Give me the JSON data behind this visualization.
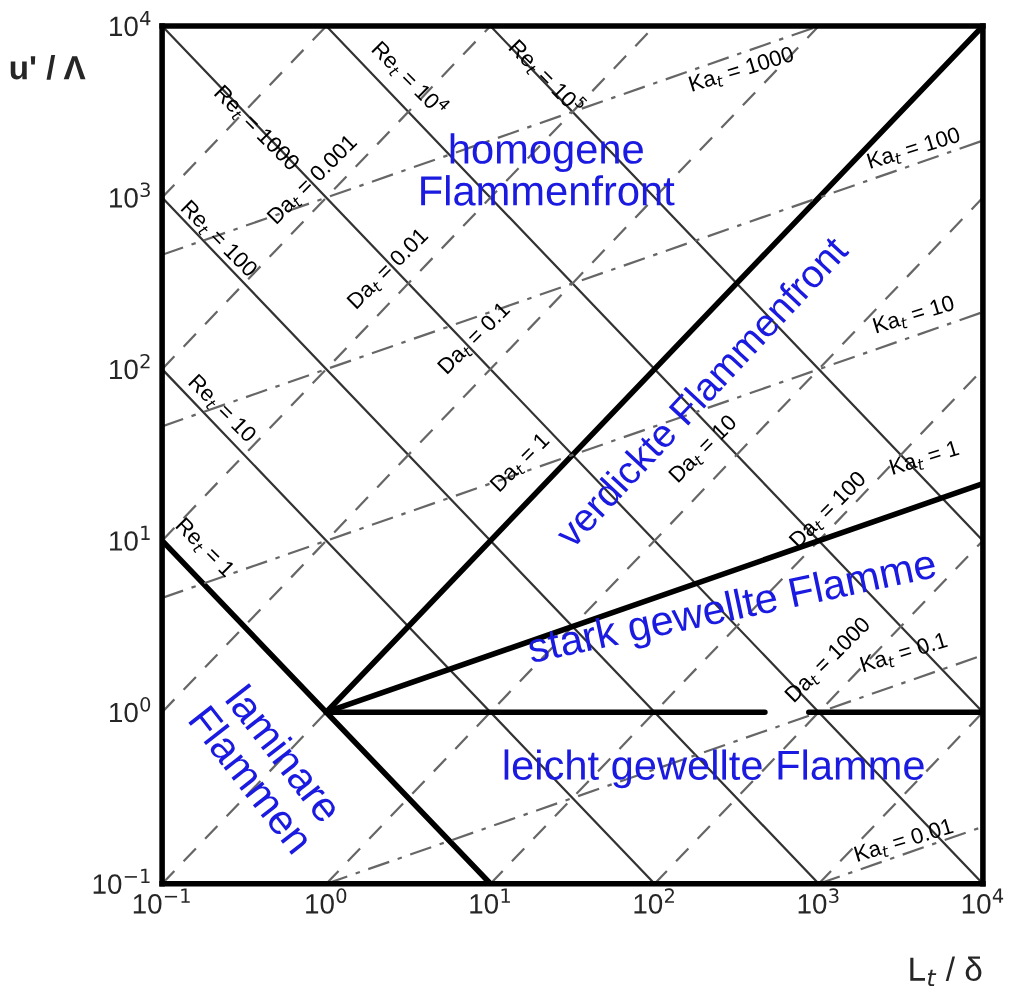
{
  "chart_data": {
    "type": "line",
    "xlabel": "L$_{t}$ / δ",
    "ylabel": "u' / Λ",
    "log": "xy",
    "grid": false,
    "legend": false,
    "xlim": [
      0.1,
      10000
    ],
    "ylim": [
      0.1,
      10000
    ],
    "xticks": [
      {
        "value": 0.1,
        "label": "10$^{−1}$"
      },
      {
        "value": 1,
        "label": "10$^{0}$"
      },
      {
        "value": 10,
        "label": "10$^{1}$"
      },
      {
        "value": 100,
        "label": "10$^{2}$"
      },
      {
        "value": 1000,
        "label": "10$^{3}$"
      },
      {
        "value": 10000,
        "label": "10$^{4}$"
      }
    ],
    "yticks": [
      {
        "value": 0.1,
        "label": "10$^{−1}$"
      },
      {
        "value": 1,
        "label": "10$^{0}$"
      },
      {
        "value": 10,
        "label": "10$^{1}$"
      },
      {
        "value": 100,
        "label": "10$^{2}$"
      },
      {
        "value": 1000,
        "label": "10$^{3}$"
      },
      {
        "value": 10000,
        "label": "10$^{4}$"
      }
    ],
    "series": [
      {
        "color": "#000000",
        "line_style": "solid",
        "x": [
          0.1,
          10
        ],
        "values": [
          10,
          0.1
        ]
      },
      {
        "color": "#333333",
        "line_style": "solid",
        "x": [
          0.1,
          100
        ],
        "values": [
          100,
          0.1
        ]
      },
      {
        "color": "#333333",
        "line_style": "solid",
        "x": [
          0.1,
          1000
        ],
        "values": [
          1000,
          0.1
        ]
      },
      {
        "color": "#333333",
        "line_style": "solid",
        "x": [
          0.1,
          10000
        ],
        "values": [
          10000,
          0.1
        ]
      },
      {
        "color": "#333333",
        "line_style": "solid",
        "x": [
          1,
          10000
        ],
        "values": [
          10000,
          1
        ]
      },
      {
        "color": "#333333",
        "line_style": "solid",
        "x": [
          10,
          10000
        ],
        "values": [
          10000,
          10
        ]
      },
      {
        "color": "#666666",
        "line_style": "dashed",
        "x": [
          0.1,
          1
        ],
        "values": [
          1000,
          10000
        ]
      },
      {
        "color": "#666666",
        "line_style": "dashed",
        "x": [
          0.1,
          10
        ],
        "values": [
          100,
          10000
        ]
      },
      {
        "color": "#666666",
        "line_style": "dashed",
        "x": [
          0.1,
          100
        ],
        "values": [
          10,
          10000
        ]
      },
      {
        "color": "#666666",
        "line_style": "dashed",
        "x": [
          0.1,
          1000
        ],
        "values": [
          1,
          10000
        ]
      },
      {
        "color": "#666666",
        "line_style": "dashed",
        "x": [
          0.1,
          1
        ],
        "values": [
          0.1,
          1
        ]
      },
      {
        "color": "#000000",
        "line_style": "solid",
        "x": [
          1,
          10000
        ],
        "values": [
          1,
          10000
        ]
      },
      {
        "color": "#666666",
        "line_style": "dashed",
        "x": [
          1,
          10000
        ],
        "values": [
          0.1,
          1000
        ]
      },
      {
        "color": "#666666",
        "line_style": "dashed",
        "x": [
          10,
          10000
        ],
        "values": [
          0.1,
          100
        ]
      },
      {
        "color": "#666666",
        "line_style": "dashed",
        "x": [
          100,
          10000
        ],
        "values": [
          0.1,
          10
        ]
      },
      {
        "color": "#666666",
        "line_style": "dashed",
        "x": [
          1000,
          10000
        ],
        "values": [
          0.1,
          1
        ]
      },
      {
        "color": "#666666",
        "line_style": "dashdot",
        "x": [
          1000,
          10000
        ],
        "values": [
          0.1,
          0.215
        ]
      },
      {
        "color": "#666666",
        "line_style": "dashdot",
        "x": [
          1,
          10000
        ],
        "values": [
          0.1,
          2.15
        ]
      },
      {
        "color": "#000000",
        "line_style": "solid",
        "x": [
          1,
          10000
        ],
        "values": [
          1,
          21.5
        ]
      },
      {
        "color": "#666666",
        "line_style": "dashdot",
        "x": [
          0.1,
          10000
        ],
        "values": [
          4.64,
          215
        ]
      },
      {
        "color": "#666666",
        "line_style": "dashdot",
        "x": [
          0.1,
          10000
        ],
        "values": [
          46.4,
          2150
        ]
      },
      {
        "color": "#666666",
        "line_style": "dashdot",
        "x": [
          0.1,
          1000
        ],
        "values": [
          464,
          10000
        ]
      },
      {
        "color": "#000000",
        "line_style": "solid",
        "x": [
          1,
          470,
          640,
          870,
          10000
        ],
        "values": [
          1,
          1,
          null,
          1,
          1
        ]
      }
    ],
    "annotations": [
      "Re$_{t}$ = 1000",
      "Re$_{t}$ = 10$^{4}$",
      "Re$_{t}$ = 10$^{5}$",
      "Re$_{t}$ = 100",
      "Re$_{t}$ = 10",
      "Re$_{t}$ = 1",
      "Da$_{t}$ = 0.001",
      "Da$_{t}$ = 0.01",
      "Da$_{t}$ = 0.1",
      "Da$_{t}$ = 1",
      "Da$_{t}$ = 10",
      "Da$_{t}$ = 100",
      "Da$_{t}$ = 1000",
      "Ka$_{t}$ = 1000",
      "Ka$_{t}$ = 100",
      "Ka$_{t}$ = 10",
      "Ka$_{t}$ = 1",
      "Ka$_{t}$ = 0.1",
      "Ka$_{t}$ = 0.01",
      "homogene\nFlammenfront",
      "verdickte Flammenfront",
      "stark gewellte Flamme",
      "leicht gewellte Flamme",
      "laminare\nFlammen"
    ]
  }
}
